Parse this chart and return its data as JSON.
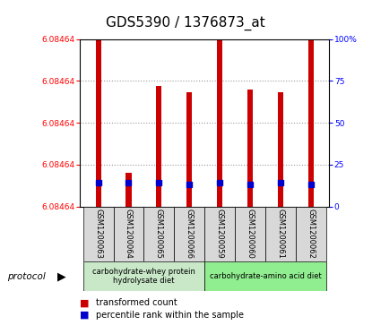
{
  "title": "GDS5390 / 1376873_at",
  "samples": [
    "GSM1200063",
    "GSM1200064",
    "GSM1200065",
    "GSM1200066",
    "GSM1200059",
    "GSM1200060",
    "GSM1200061",
    "GSM1200062"
  ],
  "red_tops_pct": [
    100,
    20,
    72,
    68,
    100,
    70,
    68,
    100
  ],
  "blue_pct": [
    14,
    14,
    14,
    13,
    14,
    13,
    14,
    13
  ],
  "ylim_min": 0.0,
  "ylim_max": 100.0,
  "ytick_positions": [
    0,
    25,
    50,
    75,
    100
  ],
  "ytick_labels": [
    "6.08464",
    "6.08464",
    "6.08464",
    "6.08464",
    "6.08464"
  ],
  "right_ytick_labels": [
    "0",
    "25",
    "50",
    "75",
    "100%"
  ],
  "group1_label": "carbohydrate-whey protein\nhydrolysate diet",
  "group2_label": "carbohydrate-amino acid diet",
  "group1_color": "#c8e8c8",
  "group2_color": "#90ee90",
  "protocol_label": "protocol",
  "bar_color": "#cc0000",
  "blue_color": "#0000cc",
  "title_fontsize": 11,
  "bar_width": 0.18,
  "legend_red_label": "transformed count",
  "legend_blue_label": "percentile rank within the sample"
}
